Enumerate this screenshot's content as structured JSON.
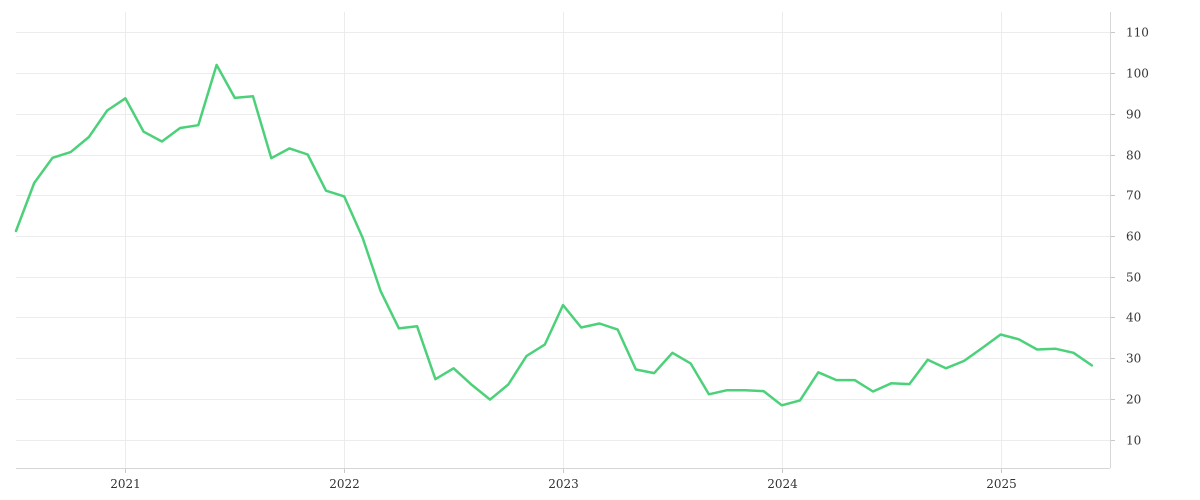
{
  "chart_data": {
    "type": "line",
    "title": "",
    "xlabel": "",
    "ylabel": "",
    "grid": true,
    "legend": "none",
    "y_axis_position": "right",
    "ylim": [
      3,
      115
    ],
    "xlim": [
      "2020-07-01",
      "2025-07-01"
    ],
    "x_tick_labels": [
      "2021",
      "2022",
      "2023",
      "2024",
      "2025"
    ],
    "y_tick_labels": [
      "10",
      "20",
      "30",
      "40",
      "50",
      "60",
      "70",
      "80",
      "90",
      "100",
      "110"
    ],
    "colors": {
      "series": "#4cd17a",
      "grid": "#ececec",
      "axis": "#d6d6d6",
      "text": "#333333"
    },
    "series": [
      {
        "x": [
          "2020-07",
          "2020-08",
          "2020-09",
          "2020-10",
          "2020-11",
          "2020-12",
          "2021-01",
          "2021-02",
          "2021-03",
          "2021-04",
          "2021-05",
          "2021-06",
          "2021-07",
          "2021-08",
          "2021-09",
          "2021-10",
          "2021-11",
          "2021-12",
          "2022-01",
          "2022-02",
          "2022-03",
          "2022-04",
          "2022-05",
          "2022-06",
          "2022-07",
          "2022-08",
          "2022-09",
          "2022-10",
          "2022-11",
          "2022-12",
          "2023-01",
          "2023-02",
          "2023-03",
          "2023-04",
          "2023-05",
          "2023-06",
          "2023-07",
          "2023-08",
          "2023-09",
          "2023-10",
          "2023-11",
          "2023-12",
          "2024-01",
          "2024-02",
          "2024-03",
          "2024-04",
          "2024-05",
          "2024-06",
          "2024-07",
          "2024-08",
          "2024-09",
          "2024-10",
          "2024-11",
          "2024-12",
          "2025-01",
          "2025-02",
          "2025-03",
          "2025-04",
          "2025-05",
          "2025-06"
        ],
        "values": [
          61.2,
          73,
          79.2,
          80.6,
          84.3,
          90.8,
          93.8,
          85.6,
          83.2,
          86.5,
          87.2,
          102,
          93.9,
          94.3,
          79.1,
          81.5,
          80,
          71.1,
          69.7,
          59.7,
          46.4,
          37.3,
          37.8,
          24.8,
          27.5,
          23.4,
          19.8,
          23.5,
          30.5,
          33.3,
          43,
          37.5,
          38.5,
          37,
          27.2,
          26.3,
          31.3,
          28.7,
          21.1,
          22.1,
          22.1,
          21.9,
          18.4,
          19.6,
          26.5,
          24.6,
          24.6,
          21.8,
          23.8,
          23.6,
          29.6,
          27.5,
          29.3,
          32.5,
          35.8,
          34.6,
          32.1,
          32.3,
          31.3,
          28.2
        ]
      }
    ]
  }
}
